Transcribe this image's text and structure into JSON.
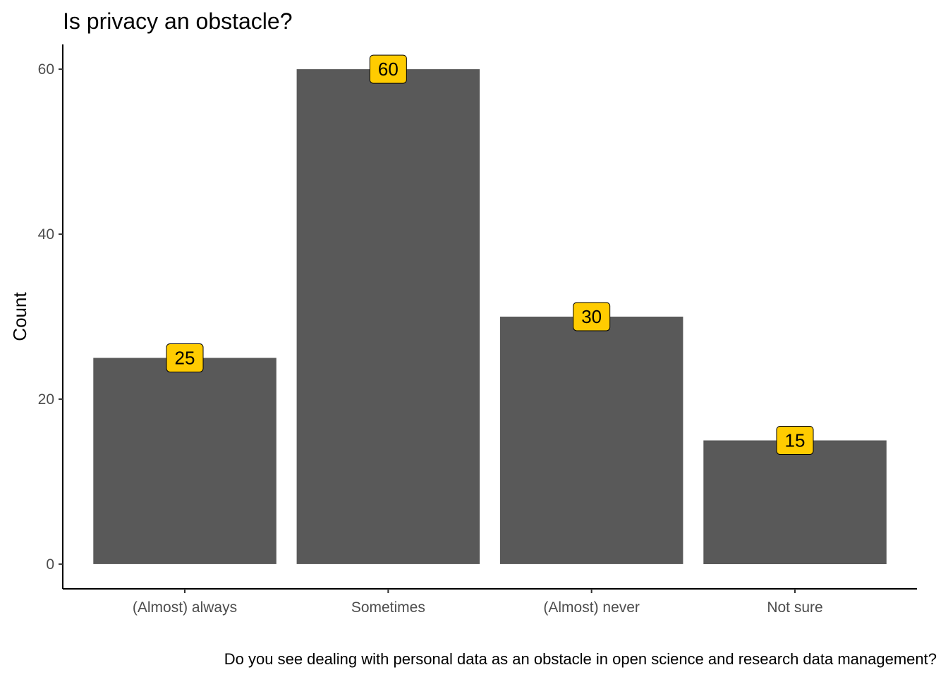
{
  "colors": {
    "bar": "#595959",
    "label_fill": "#FFCC00",
    "axis": "#000000",
    "tick_text": "#4d4d4d",
    "background": "#ffffff"
  },
  "chart_data": {
    "type": "bar",
    "title": "Is privacy an obstacle?",
    "xlabel": "Do you see dealing with personal data as an obstacle in open science and research data management?",
    "ylabel": "Count",
    "categories": [
      "(Almost) always",
      "Sometimes",
      "(Almost) never",
      "Not sure"
    ],
    "values": [
      25,
      60,
      30,
      15
    ],
    "data_labels": [
      "25",
      "60",
      "30",
      "15"
    ],
    "yticks": [
      0,
      20,
      40,
      60
    ],
    "ytick_labels": [
      "0",
      "20",
      "40",
      "60"
    ],
    "ylim": [
      -3,
      63
    ],
    "grid": false,
    "legend": "none"
  }
}
